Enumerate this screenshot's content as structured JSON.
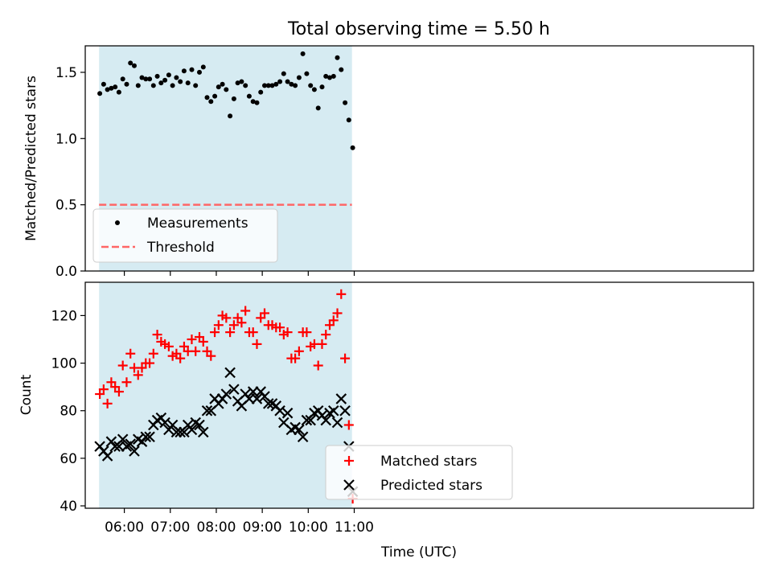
{
  "figure_title": "Total observing time = 5.50 h",
  "xlabel": "Time (UTC)",
  "colors": {
    "observing_band": "#add8e6",
    "measurements": "#000000",
    "threshold": "#ff6666",
    "matched": "#ff0000",
    "predicted": "#000000"
  },
  "chart_data": [
    {
      "type": "scatter",
      "name": "ratio",
      "title": "Total observing time = 5.50 h",
      "ylabel": "Matched/Predicted stars",
      "ylim": [
        0,
        1.7
      ],
      "yticks": [
        "0.0",
        "0.5",
        "1.0",
        "1.5"
      ],
      "xlim_minutes": [
        309,
        1181
      ],
      "observing_window": [
        "05:27",
        "10:57"
      ],
      "threshold": 0.5,
      "legend_position": "lower-left",
      "legend": [
        "Measurements",
        "Threshold"
      ],
      "x": [
        "05:28",
        "05:33",
        "05:38",
        "05:43",
        "05:48",
        "05:53",
        "05:58",
        "06:03",
        "06:08",
        "06:13",
        "06:18",
        "06:23",
        "06:28",
        "06:33",
        "06:38",
        "06:43",
        "06:48",
        "06:53",
        "06:58",
        "07:03",
        "07:08",
        "07:13",
        "07:18",
        "07:23",
        "07:28",
        "07:33",
        "07:38",
        "07:43",
        "07:48",
        "07:53",
        "07:58",
        "08:03",
        "08:08",
        "08:13",
        "08:18",
        "08:23",
        "08:28",
        "08:33",
        "08:38",
        "08:43",
        "08:48",
        "08:53",
        "08:58",
        "09:03",
        "09:08",
        "09:13",
        "09:18",
        "09:23",
        "09:28",
        "09:33",
        "09:38",
        "09:43",
        "09:48",
        "09:53",
        "09:58",
        "10:03",
        "10:08",
        "10:13",
        "10:18",
        "10:23",
        "10:28",
        "10:33",
        "10:38",
        "10:43",
        "10:48",
        "10:53",
        "10:58"
      ],
      "series": [
        {
          "name": "Measurements",
          "values": [
            1.34,
            1.41,
            1.37,
            1.38,
            1.39,
            1.35,
            1.45,
            1.41,
            1.57,
            1.55,
            1.4,
            1.46,
            1.45,
            1.45,
            1.4,
            1.47,
            1.42,
            1.44,
            1.48,
            1.4,
            1.46,
            1.43,
            1.51,
            1.42,
            1.52,
            1.4,
            1.5,
            1.54,
            1.31,
            1.28,
            1.32,
            1.39,
            1.41,
            1.37,
            1.17,
            1.3,
            1.42,
            1.43,
            1.4,
            1.32,
            1.28,
            1.27,
            1.35,
            1.4,
            1.4,
            1.4,
            1.41,
            1.43,
            1.49,
            1.43,
            1.41,
            1.4,
            1.46,
            1.64,
            1.49,
            1.4,
            1.37,
            1.23,
            1.39,
            1.47,
            1.46,
            1.47,
            1.61,
            1.52,
            1.27,
            1.14,
            0.93
          ]
        }
      ]
    },
    {
      "type": "scatter",
      "name": "counts",
      "ylabel": "Count",
      "ylim": [
        39,
        134
      ],
      "yticks": [
        "40",
        "60",
        "80",
        "100",
        "120"
      ],
      "xlim_minutes": [
        309,
        1181
      ],
      "xticks": [
        "06:00",
        "07:00",
        "08:00",
        "09:00",
        "10:00",
        "11:00"
      ],
      "observing_window": [
        "05:27",
        "10:57"
      ],
      "legend_position": "lower-center",
      "legend": [
        "Matched stars",
        "Predicted stars"
      ],
      "x": [
        "05:28",
        "05:33",
        "05:38",
        "05:43",
        "05:48",
        "05:53",
        "05:58",
        "06:03",
        "06:08",
        "06:13",
        "06:18",
        "06:23",
        "06:28",
        "06:33",
        "06:38",
        "06:43",
        "06:48",
        "06:53",
        "06:58",
        "07:03",
        "07:08",
        "07:13",
        "07:18",
        "07:23",
        "07:28",
        "07:33",
        "07:38",
        "07:43",
        "07:48",
        "07:53",
        "07:58",
        "08:03",
        "08:08",
        "08:13",
        "08:18",
        "08:23",
        "08:28",
        "08:33",
        "08:38",
        "08:43",
        "08:48",
        "08:53",
        "08:58",
        "09:03",
        "09:08",
        "09:13",
        "09:18",
        "09:23",
        "09:28",
        "09:33",
        "09:38",
        "09:43",
        "09:48",
        "09:53",
        "09:58",
        "10:03",
        "10:08",
        "10:13",
        "10:18",
        "10:23",
        "10:28",
        "10:33",
        "10:38",
        "10:43",
        "10:48",
        "10:53",
        "10:58"
      ],
      "series": [
        {
          "name": "Matched stars",
          "values": [
            87,
            89,
            83,
            92,
            90,
            88,
            99,
            92,
            104,
            98,
            95,
            98,
            100,
            100,
            104,
            112,
            109,
            108,
            107,
            103,
            104,
            102,
            107,
            105,
            110,
            105,
            111,
            109,
            105,
            103,
            113,
            116,
            120,
            119,
            113,
            116,
            119,
            117,
            122,
            113,
            113,
            108,
            119,
            121,
            116,
            116,
            115,
            115,
            112,
            113,
            102,
            102,
            105,
            113,
            113,
            107,
            108,
            99,
            108,
            112,
            116,
            118,
            121,
            129,
            102,
            74,
            43
          ]
        },
        {
          "name": "Predicted stars",
          "values": [
            65,
            63,
            61,
            67,
            65,
            65,
            68,
            65,
            66,
            63,
            68,
            67,
            69,
            69,
            74,
            76,
            77,
            75,
            72,
            74,
            71,
            71,
            71,
            74,
            72,
            75,
            74,
            71,
            80,
            80,
            85,
            83,
            85,
            87,
            96,
            89,
            84,
            82,
            87,
            85,
            88,
            85,
            88,
            86,
            83,
            83,
            82,
            80,
            75,
            79,
            72,
            73,
            72,
            69,
            76,
            76,
            79,
            80,
            78,
            76,
            79,
            80,
            75,
            85,
            80,
            65,
            46
          ]
        }
      ]
    }
  ]
}
